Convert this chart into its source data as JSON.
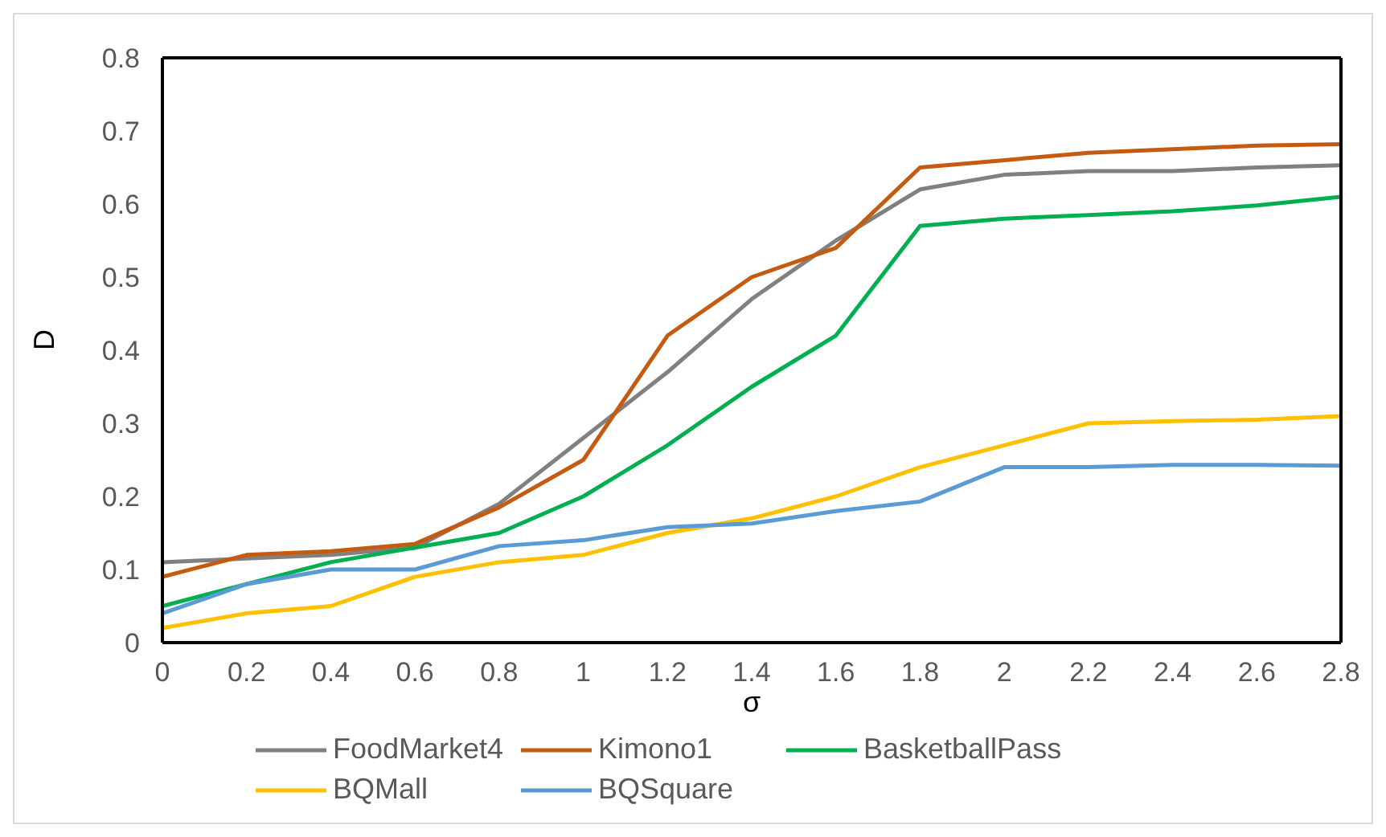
{
  "chart_data": {
    "type": "line",
    "xlabel": "σ",
    "ylabel": "D",
    "x": [
      0,
      0.2,
      0.4,
      0.6,
      0.8,
      1,
      1.2,
      1.4,
      1.6,
      1.8,
      2,
      2.2,
      2.4,
      2.6,
      2.8
    ],
    "xlim": [
      0,
      2.8
    ],
    "xticks": [
      0,
      0.2,
      0.4,
      0.6,
      0.8,
      1,
      1.2,
      1.4,
      1.6,
      1.8,
      2,
      2.2,
      2.4,
      2.6,
      2.8
    ],
    "ylim": [
      0,
      0.8
    ],
    "yticks": [
      0,
      0.1,
      0.2,
      0.3,
      0.4,
      0.5,
      0.6,
      0.7,
      0.8
    ],
    "grid": false,
    "legend": "bottom",
    "marker": "none",
    "line_style": "solid",
    "series": [
      {
        "name": "FoodMarket4",
        "color": "#808080",
        "values": [
          0.11,
          0.115,
          0.12,
          0.13,
          0.19,
          0.28,
          0.37,
          0.47,
          0.55,
          0.62,
          0.64,
          0.645,
          0.645,
          0.65,
          0.653
        ]
      },
      {
        "name": "Kimono1",
        "color": "#c55a11",
        "values": [
          0.09,
          0.12,
          0.125,
          0.135,
          0.185,
          0.25,
          0.42,
          0.5,
          0.54,
          0.65,
          0.66,
          0.67,
          0.675,
          0.68,
          0.682
        ]
      },
      {
        "name": "BasketballPass",
        "color": "#00b050",
        "values": [
          0.05,
          0.08,
          0.11,
          0.13,
          0.15,
          0.2,
          0.27,
          0.35,
          0.42,
          0.57,
          0.58,
          0.585,
          0.59,
          0.598,
          0.61
        ]
      },
      {
        "name": "BQMall",
        "color": "#ffc000",
        "values": [
          0.02,
          0.04,
          0.05,
          0.09,
          0.11,
          0.12,
          0.15,
          0.17,
          0.2,
          0.24,
          0.27,
          0.3,
          0.303,
          0.305,
          0.31
        ]
      },
      {
        "name": "BQSquare",
        "color": "#5b9bd5",
        "values": [
          0.04,
          0.08,
          0.1,
          0.1,
          0.132,
          0.14,
          0.158,
          0.163,
          0.18,
          0.193,
          0.24,
          0.24,
          0.243,
          0.243,
          0.242
        ]
      }
    ]
  }
}
